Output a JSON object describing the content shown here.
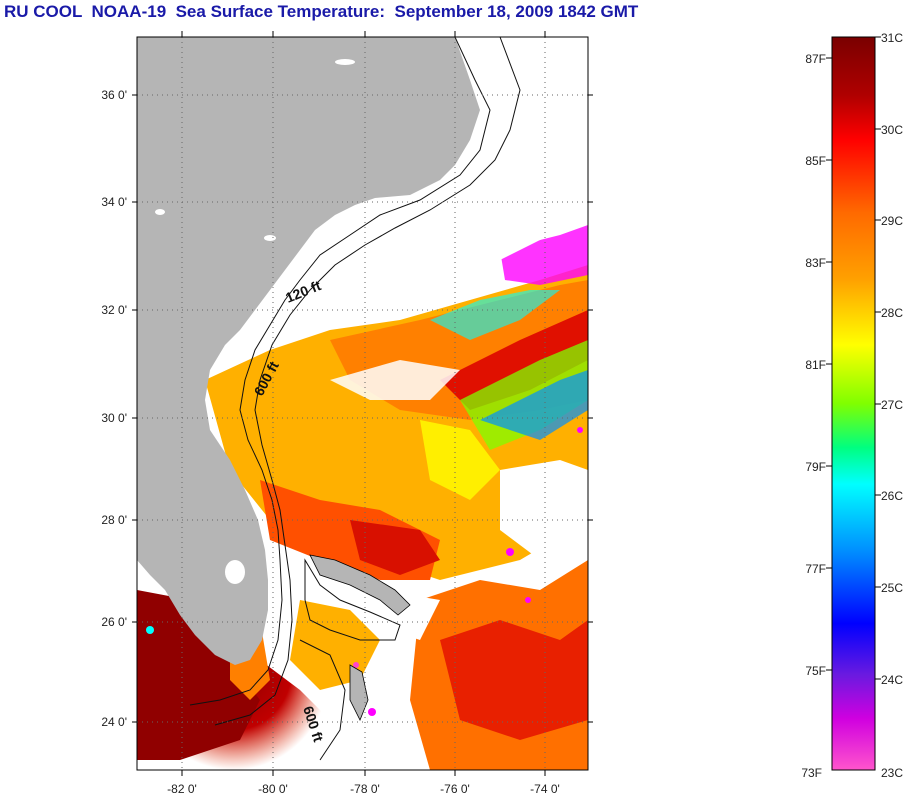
{
  "title": "RU COOL  NOAA-19  Sea Surface Temperature:  September 18, 2009 1842 GMT",
  "map": {
    "lat_ticks": [
      "36 0'",
      "34 0'",
      "32 0'",
      "30 0'",
      "28 0'",
      "26 0'",
      "24 0'"
    ],
    "lon_ticks": [
      "-82 0'",
      "-80 0'",
      "-78 0'",
      "-76 0'",
      "-74 0'"
    ],
    "depth_labels": [
      "120 ft",
      "600 ft",
      "600 ft"
    ],
    "land_color": "#b5b5b5",
    "no_data_color": "#ffffff"
  },
  "colorbar": {
    "celsius_labels": [
      "31C",
      "30C",
      "29C",
      "28C",
      "27C",
      "26C",
      "25C",
      "24C",
      "23C"
    ],
    "fahrenheit_labels": [
      "87F",
      "85F",
      "83F",
      "81F",
      "79F",
      "77F",
      "75F",
      "73F"
    ],
    "gradient_colors": [
      "#8b0000",
      "#c80000",
      "#ff0000",
      "#ff6a00",
      "#ffa500",
      "#ffff00",
      "#7fff00",
      "#00ff7f",
      "#00ffff",
      "#0080ff",
      "#0000ff",
      "#8a2be2",
      "#ff00ff",
      "#ff66cc"
    ]
  }
}
